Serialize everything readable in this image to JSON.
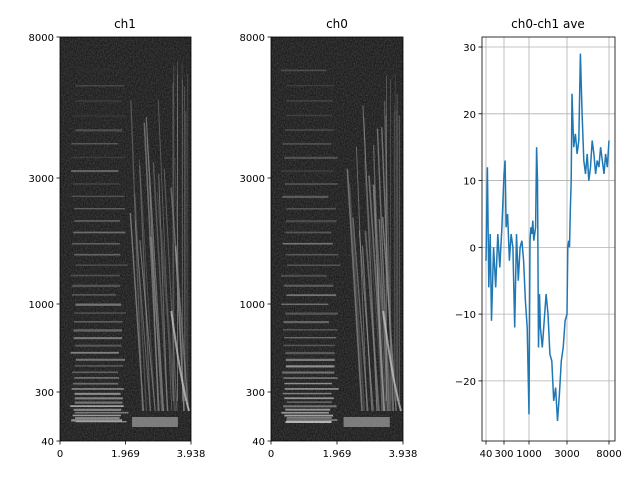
{
  "chart_data": [
    {
      "type": "heatmap",
      "title": "ch1",
      "xlabel": "",
      "ylabel": "",
      "x_ticks": [
        "0",
        "1.969",
        "3.938"
      ],
      "y_ticks": [
        "40",
        "300",
        "1000",
        "3000",
        "8000"
      ],
      "xlim": [
        0,
        3.938
      ],
      "ylim": [
        40,
        8000
      ],
      "colormap": "gray"
    },
    {
      "type": "heatmap",
      "title": "ch0",
      "xlabel": "",
      "ylabel": "",
      "x_ticks": [
        "0",
        "1.969",
        "3.938"
      ],
      "y_ticks": [
        "40",
        "300",
        "1000",
        "3000",
        "8000"
      ],
      "xlim": [
        0,
        3.938
      ],
      "ylim": [
        40,
        8000
      ],
      "colormap": "gray"
    },
    {
      "type": "line",
      "title": "ch0-ch1 ave",
      "xlabel": "",
      "ylabel": "",
      "x_ticks": [
        "40",
        "300",
        "1000",
        "3000",
        "8000"
      ],
      "y_ticks": [
        "−20",
        "−10",
        "0",
        "10",
        "20",
        "30"
      ],
      "y_tick_values": [
        -20,
        -10,
        0,
        10,
        20,
        30
      ],
      "ylim": [
        -29,
        31.5
      ],
      "grid": true,
      "series": [
        {
          "color": "#1f77b4",
          "x": [
            40,
            60,
            80,
            100,
            120,
            150,
            180,
            210,
            240,
            270,
            300,
            330,
            360,
            400,
            450,
            500,
            550,
            600,
            650,
            700,
            750,
            800,
            850,
            900,
            950,
            1000,
            1050,
            1100,
            1150,
            1200,
            1250,
            1300,
            1350,
            1400,
            1450,
            1500,
            1550,
            1600,
            1700,
            1800,
            1900,
            2000,
            2100,
            2200,
            2300,
            2400,
            2500,
            2600,
            2700,
            2800,
            2900,
            3000,
            3100,
            3200,
            3300,
            3400,
            3500,
            3600,
            3800,
            4000,
            4200,
            4400,
            4600,
            4800,
            5000,
            5200,
            5400,
            5600,
            5800,
            6000,
            6200,
            6400,
            6600,
            6800,
            7000,
            7200,
            7400,
            7600,
            7800,
            8000
          ],
          "y": [
            -2,
            12,
            -6,
            2,
            -11,
            0,
            -6,
            2,
            -3,
            3,
            11,
            13,
            3,
            5,
            -2,
            2,
            0,
            -12,
            2,
            -5,
            0,
            1,
            -2,
            -8,
            -12,
            -25,
            1,
            3,
            2,
            4,
            1,
            2,
            3,
            15,
            10,
            -15,
            -7,
            -12,
            -15,
            -11,
            -7,
            -10,
            -16,
            -17,
            -23,
            -21,
            -26,
            -22,
            -17,
            -15,
            -11,
            -10,
            0,
            1,
            0,
            6,
            10,
            23,
            15,
            17,
            14,
            16,
            29,
            20,
            13,
            11,
            14,
            10,
            12,
            16,
            14,
            11,
            13,
            12,
            15,
            13,
            11,
            14,
            12,
            16
          ]
        }
      ]
    }
  ]
}
